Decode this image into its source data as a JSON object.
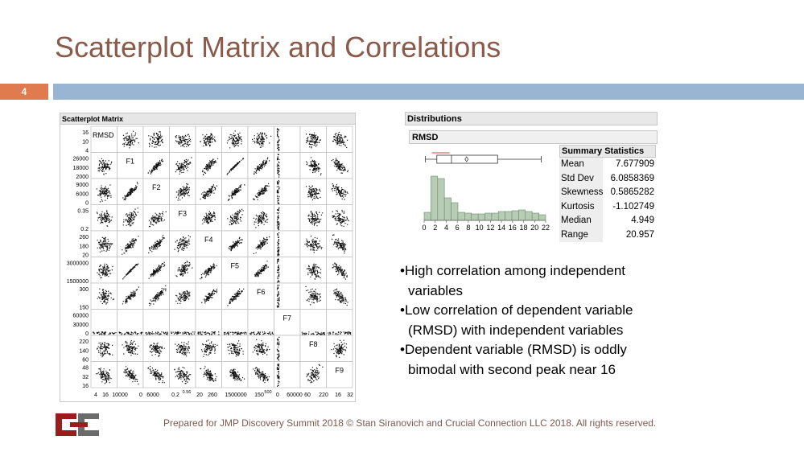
{
  "slide": {
    "title": "Scatterplot Matrix and Correlations",
    "number": "4",
    "footer": "Prepared for JMP Discovery Summit 2018 © Stan Siranovich and Crucial Connection LLC 2018. All rights reserved."
  },
  "scatterplot_matrix": {
    "title": "Scatterplot Matrix",
    "variables": [
      "RMSD",
      "F1",
      "F2",
      "F3",
      "F4",
      "F5",
      "F6",
      "F7",
      "F8",
      "F9"
    ],
    "y_ticks": [
      [
        "16",
        "10",
        "4"
      ],
      [
        "26000",
        "18000",
        "2000"
      ],
      [
        "9000",
        "6000",
        "0"
      ],
      [
        "0.35",
        "0.2"
      ],
      [
        "260",
        "180",
        "20"
      ],
      [
        "3000000",
        "1500000"
      ],
      [
        "300",
        "150"
      ],
      [
        "60000",
        "30000",
        "0"
      ],
      [
        "220",
        "140",
        "60"
      ],
      [
        "48",
        "32",
        "16"
      ]
    ],
    "x_ticks": [
      "4",
      "16",
      "10000",
      "0",
      "6000",
      "0.2",
      "0.56",
      "20",
      "260",
      "1500000",
      "150",
      "500",
      "0",
      "60000",
      "60",
      "220",
      "16",
      "32"
    ]
  },
  "distributions": {
    "header": "Distributions",
    "variable": "RMSD",
    "x_axis_ticks": [
      "0",
      "2",
      "4",
      "6",
      "8",
      "10",
      "12",
      "14",
      "16",
      "18",
      "20",
      "22"
    ],
    "colors": {
      "bars": "#b7ccb4",
      "bar_stroke": "#6d8a69",
      "outlier_bracket": "#d04040"
    },
    "summary": {
      "title": "Summary Statistics",
      "rows": [
        {
          "label": "Mean",
          "value": "7.677909"
        },
        {
          "label": "Std Dev",
          "value": "6.0858369"
        },
        {
          "label": "Skewness",
          "value": "0.5865282"
        },
        {
          "label": "Kurtosis",
          "value": "-1.102749"
        },
        {
          "label": "Median",
          "value": "4.949"
        },
        {
          "label": "Range",
          "value": "20.957"
        }
      ]
    }
  },
  "bullets": [
    "•High correlation among independent variables",
    "•Low correlation of dependent variable (RMSD) with independent variables",
    "•Dependent variable (RMSD) is oddly bimodal with second peak near 16"
  ],
  "colors": {
    "title": "#8a5a4b",
    "band": "#9ab5d3",
    "slide_number_bg": "#e07b4f",
    "logo_red": "#9b1c1c",
    "logo_gray": "#6b6b6b"
  }
}
